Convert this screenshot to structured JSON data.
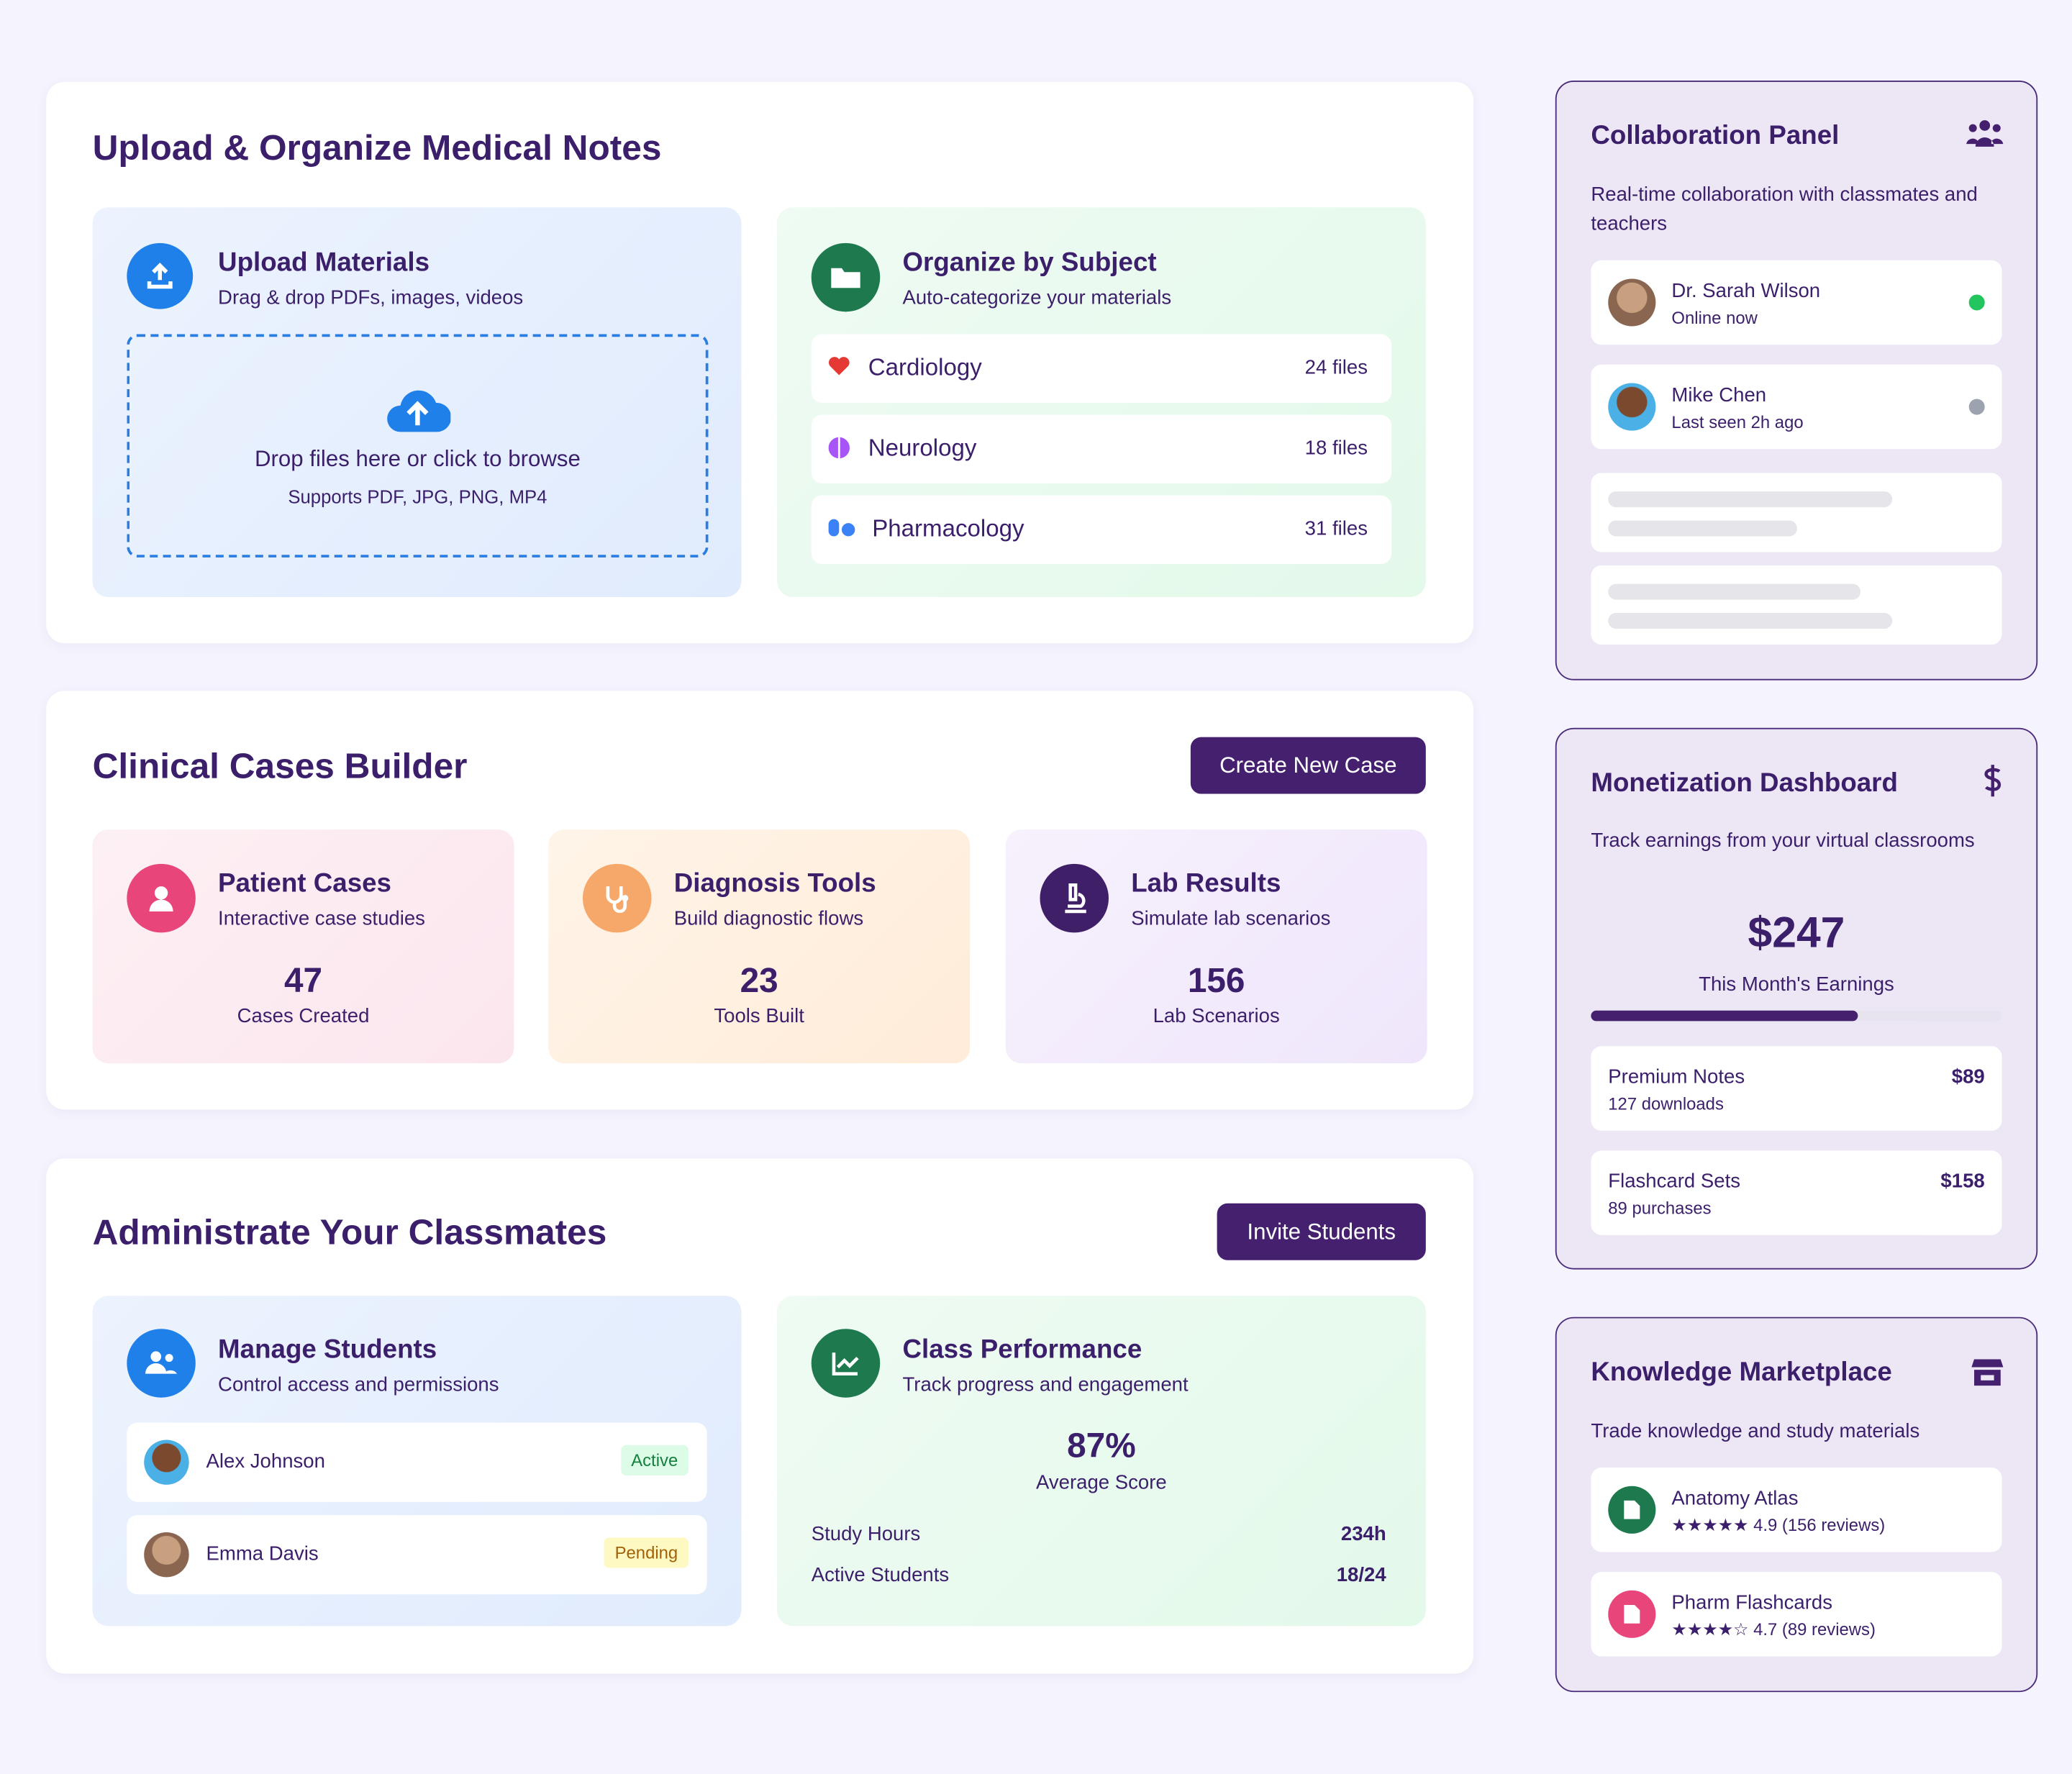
{
  "upload_section": {
    "title": "Upload & Organize Medical Notes",
    "upload": {
      "title": "Upload Materials",
      "subtitle": "Drag & drop PDFs, images, videos",
      "drop_text": "Drop files here or click to browse",
      "supports": "Supports PDF, JPG, PNG, MP4"
    },
    "organize": {
      "title": "Organize by Subject",
      "subtitle": "Auto-categorize your materials",
      "subjects": [
        {
          "name": "Cardiology",
          "count": "24 files"
        },
        {
          "name": "Neurology",
          "count": "18 files"
        },
        {
          "name": "Pharmacology",
          "count": "31 files"
        }
      ]
    }
  },
  "cases_section": {
    "title": "Clinical Cases Builder",
    "button": "Create New Case",
    "cards": [
      {
        "title": "Patient Cases",
        "subtitle": "Interactive case studies",
        "value": "47",
        "label": "Cases Created"
      },
      {
        "title": "Diagnosis Tools",
        "subtitle": "Build diagnostic flows",
        "value": "23",
        "label": "Tools Built"
      },
      {
        "title": "Lab Results",
        "subtitle": "Simulate lab scenarios",
        "value": "156",
        "label": "Lab Scenarios"
      }
    ]
  },
  "classmates_section": {
    "title": "Administrate Your Classmates",
    "button": "Invite Students",
    "manage": {
      "title": "Manage Students",
      "subtitle": "Control access and permissions",
      "students": [
        {
          "name": "Alex Johnson",
          "status": "Active"
        },
        {
          "name": "Emma Davis",
          "status": "Pending"
        }
      ]
    },
    "performance": {
      "title": "Class Performance",
      "subtitle": "Track progress and engagement",
      "score": "87%",
      "score_label": "Average Score",
      "stats": [
        {
          "label": "Study Hours",
          "value": "234h"
        },
        {
          "label": "Active Students",
          "value": "18/24"
        }
      ]
    }
  },
  "collaboration": {
    "title": "Collaboration Panel",
    "description": "Real-time collaboration with classmates and teachers",
    "members": [
      {
        "name": "Dr. Sarah Wilson",
        "status": "Online now"
      },
      {
        "name": "Mike Chen",
        "status": "Last seen 2h ago"
      }
    ]
  },
  "monetization": {
    "title": "Monetization Dashboard",
    "description": "Track earnings from your virtual classrooms",
    "earnings": "$247",
    "earnings_label": "This Month's Earnings",
    "items": [
      {
        "name": "Premium Notes",
        "detail": "127 downloads",
        "price": "$89"
      },
      {
        "name": "Flashcard Sets",
        "detail": "89 purchases",
        "price": "$158"
      }
    ]
  },
  "marketplace": {
    "title": "Knowledge Marketplace",
    "description": "Trade knowledge and study materials",
    "items": [
      {
        "name": "Anatomy Atlas",
        "rating": "★★★★★ 4.9 (156 reviews)"
      },
      {
        "name": "Pharm Flashcards",
        "rating": "★★★★☆ 4.7 (89 reviews)"
      }
    ]
  }
}
